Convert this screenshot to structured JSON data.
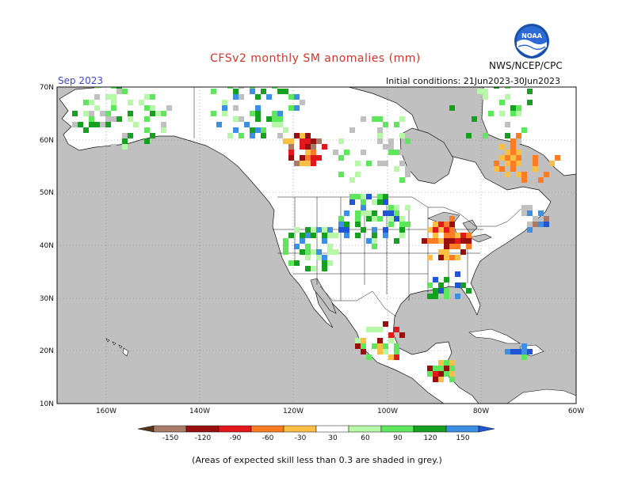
{
  "title": "CFSv2 monthly SM anomalies (mm)",
  "org_label": "NWS/NCEP/CPC",
  "period_label": "Sep 2023",
  "init_label": "Initial conditions: 21Jun2023-30Jun2023",
  "footnote": "(Areas of expected skill less than 0.3 are shaded in grey.)",
  "logo_text": "NOAA",
  "lat_labels": [
    "70N",
    "60N",
    "50N",
    "40N",
    "30N",
    "20N",
    "10N"
  ],
  "lon_labels": [
    "160W",
    "140W",
    "120W",
    "100W",
    "80W",
    "60W"
  ],
  "colorbar": {
    "tick_labels": [
      "-150",
      "-120",
      "-90",
      "-60",
      "-30",
      "30",
      "60",
      "90",
      "120",
      "150"
    ],
    "colors": [
      "#5a3418",
      "#a87a68",
      "#990e0e",
      "#e3181c",
      "#fe7d24",
      "#fbbf45",
      "#ffffff",
      "#b7f7a8",
      "#5ee75c",
      "#16a01f",
      "#3d8fe3",
      "#2155d6"
    ]
  },
  "colors": {
    "ocean_grey": "#c0c0c0",
    "land": "#ffffff",
    "title_red": "#d4342a",
    "period_blue": "#3f47c8"
  }
}
